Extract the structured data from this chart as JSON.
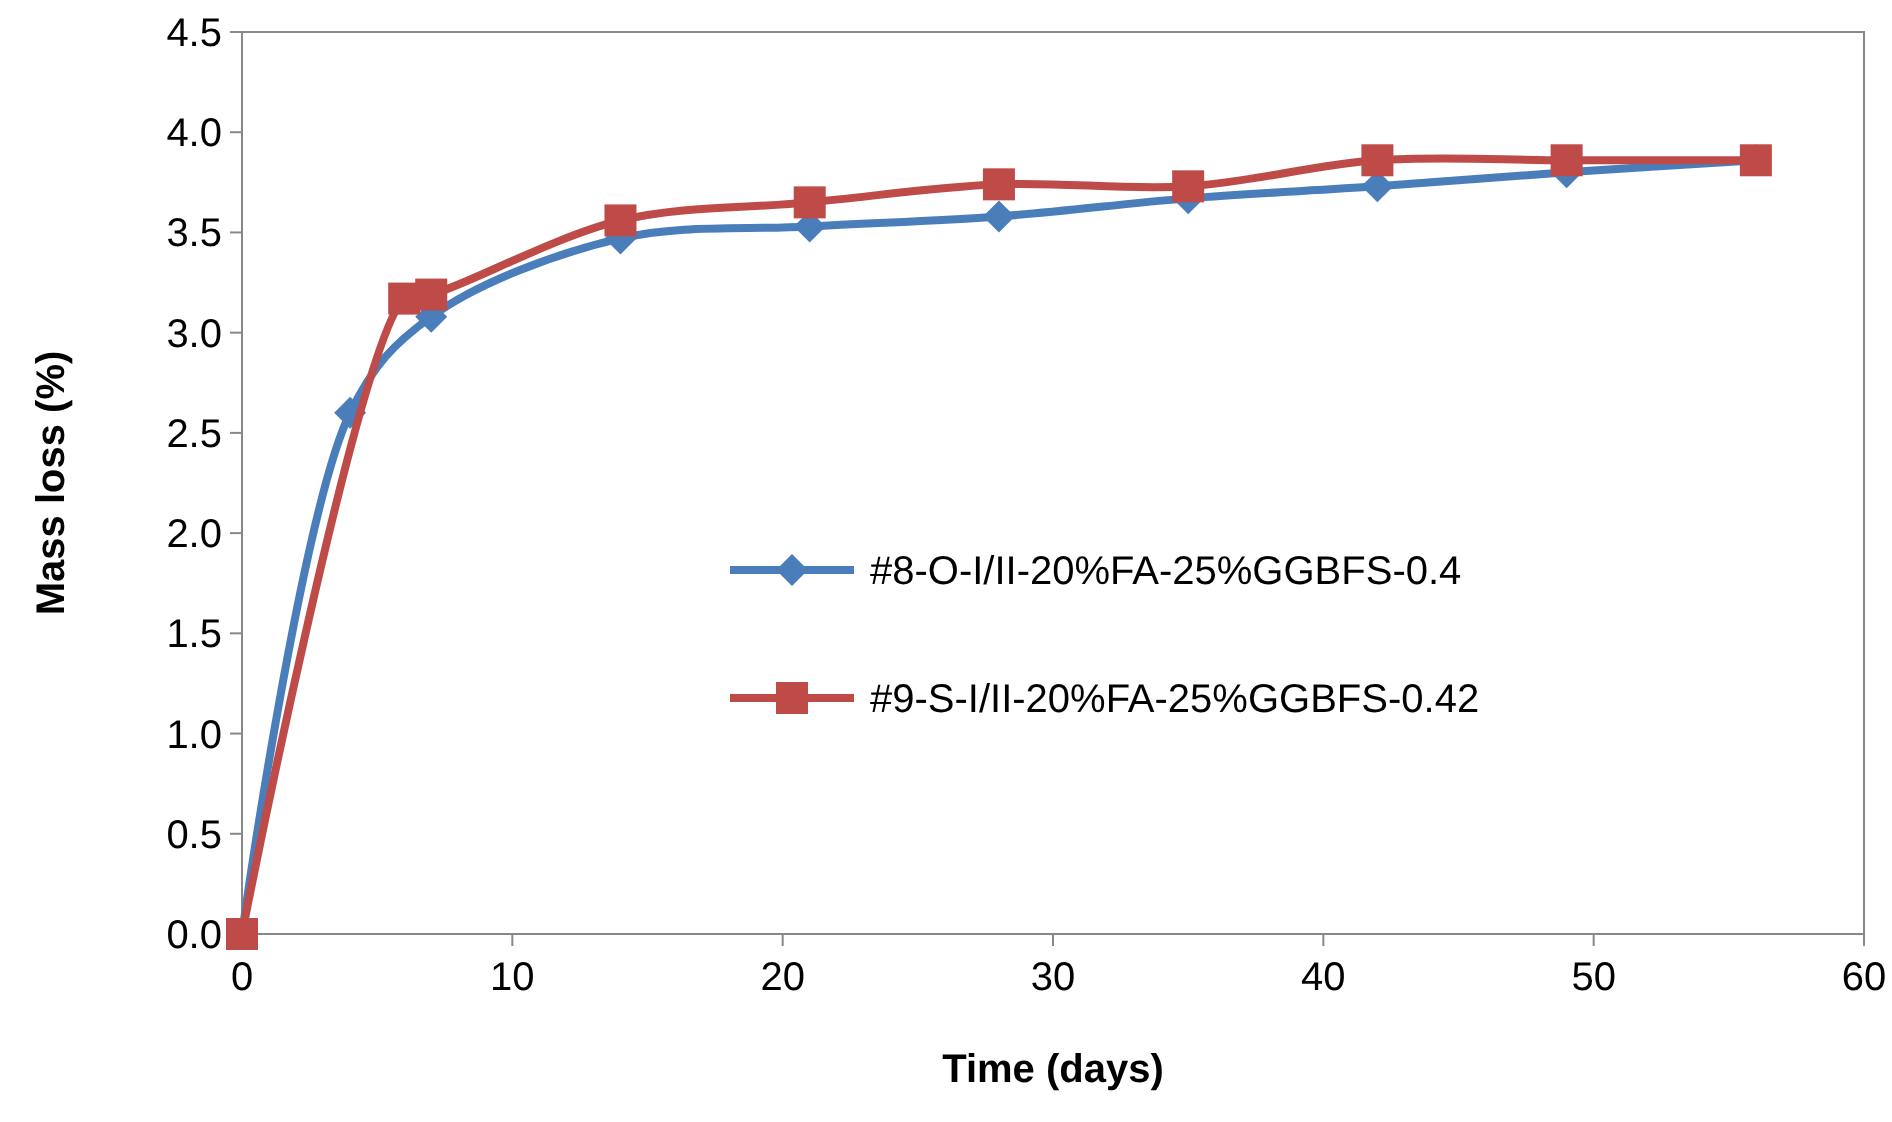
{
  "chart_data": {
    "type": "line",
    "xlabel": "Time (days)",
    "ylabel": "Mass loss (%)",
    "xlim": [
      0,
      60
    ],
    "xticks": [
      0,
      10,
      20,
      30,
      40,
      50,
      60
    ],
    "ylim": [
      0,
      4.5
    ],
    "yticks": [
      {
        "value": 0,
        "label": "0.0"
      },
      {
        "value": 0.5,
        "label": "0.5"
      },
      {
        "value": 1,
        "label": "1.0"
      },
      {
        "value": 1.5,
        "label": "1.5"
      },
      {
        "value": 2,
        "label": "2.0"
      },
      {
        "value": 2.5,
        "label": "2.5"
      },
      {
        "value": 3,
        "label": "3.0"
      },
      {
        "value": 3.5,
        "label": "3.5"
      },
      {
        "value": 4,
        "label": "4.0"
      },
      {
        "value": 4.5,
        "label": "4.5"
      }
    ],
    "grid": false,
    "legend": "right",
    "line_style": "solid",
    "series": [
      {
        "name": "#8-O-I/II-20%FA-25%GGBFS-0.4",
        "color": "#4a7ebb",
        "marker": "diamond",
        "x": [
          0,
          4,
          7,
          14,
          21,
          28,
          35,
          42,
          49,
          56
        ],
        "values": [
          0,
          2.6,
          3.08,
          3.47,
          3.53,
          3.58,
          3.67,
          3.73,
          3.8,
          3.86
        ]
      },
      {
        "name": "#9-S-I/II-20%FA-25%GGBFS-0.42",
        "color": "#be4b48",
        "marker": "square",
        "x": [
          0,
          6,
          7,
          14,
          21,
          28,
          35,
          42,
          49,
          56
        ],
        "values": [
          0,
          3.17,
          3.19,
          3.56,
          3.65,
          3.74,
          3.73,
          3.86,
          3.86,
          3.86
        ]
      }
    ]
  }
}
